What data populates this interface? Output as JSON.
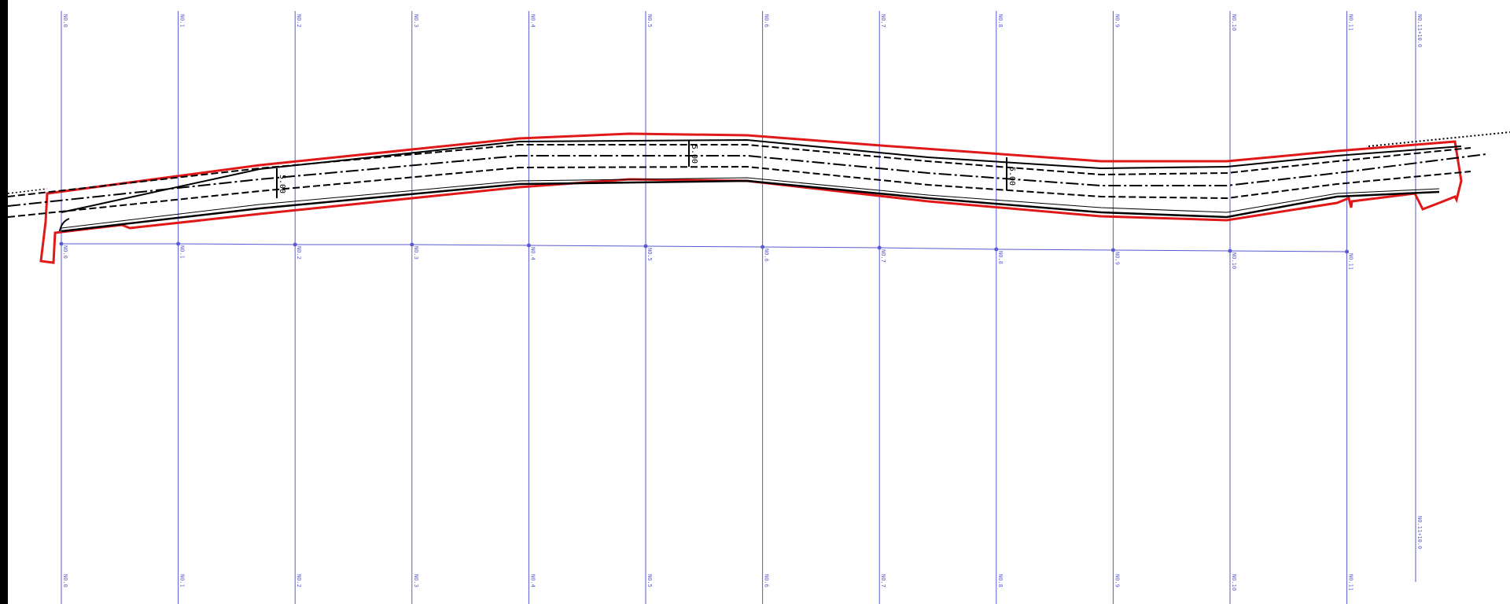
{
  "colors": {
    "station_line": "#5a5ad2",
    "boundary": "#e01818",
    "road_line": "#000000",
    "dim_text": "#000000"
  },
  "stations": [
    {
      "id": 0,
      "label": "NO.0"
    },
    {
      "id": 1,
      "label": "NO.1"
    },
    {
      "id": 2,
      "label": "NO.2"
    },
    {
      "id": 3,
      "label": "NO.3"
    },
    {
      "id": 4,
      "label": "NO.4"
    },
    {
      "id": 5,
      "label": "NO.5"
    },
    {
      "id": 6,
      "label": "NO.6"
    },
    {
      "id": 7,
      "label": "NO.7"
    },
    {
      "id": 8,
      "label": "NO.8"
    },
    {
      "id": 9,
      "label": "NO.9"
    },
    {
      "id": 10,
      "label": "NO.10"
    },
    {
      "id": 11,
      "label": "NO.11"
    }
  ],
  "extra_station": {
    "label": "NO.11+10.0"
  },
  "dimensions": [
    "5.00",
    "5.00",
    "5.00"
  ]
}
